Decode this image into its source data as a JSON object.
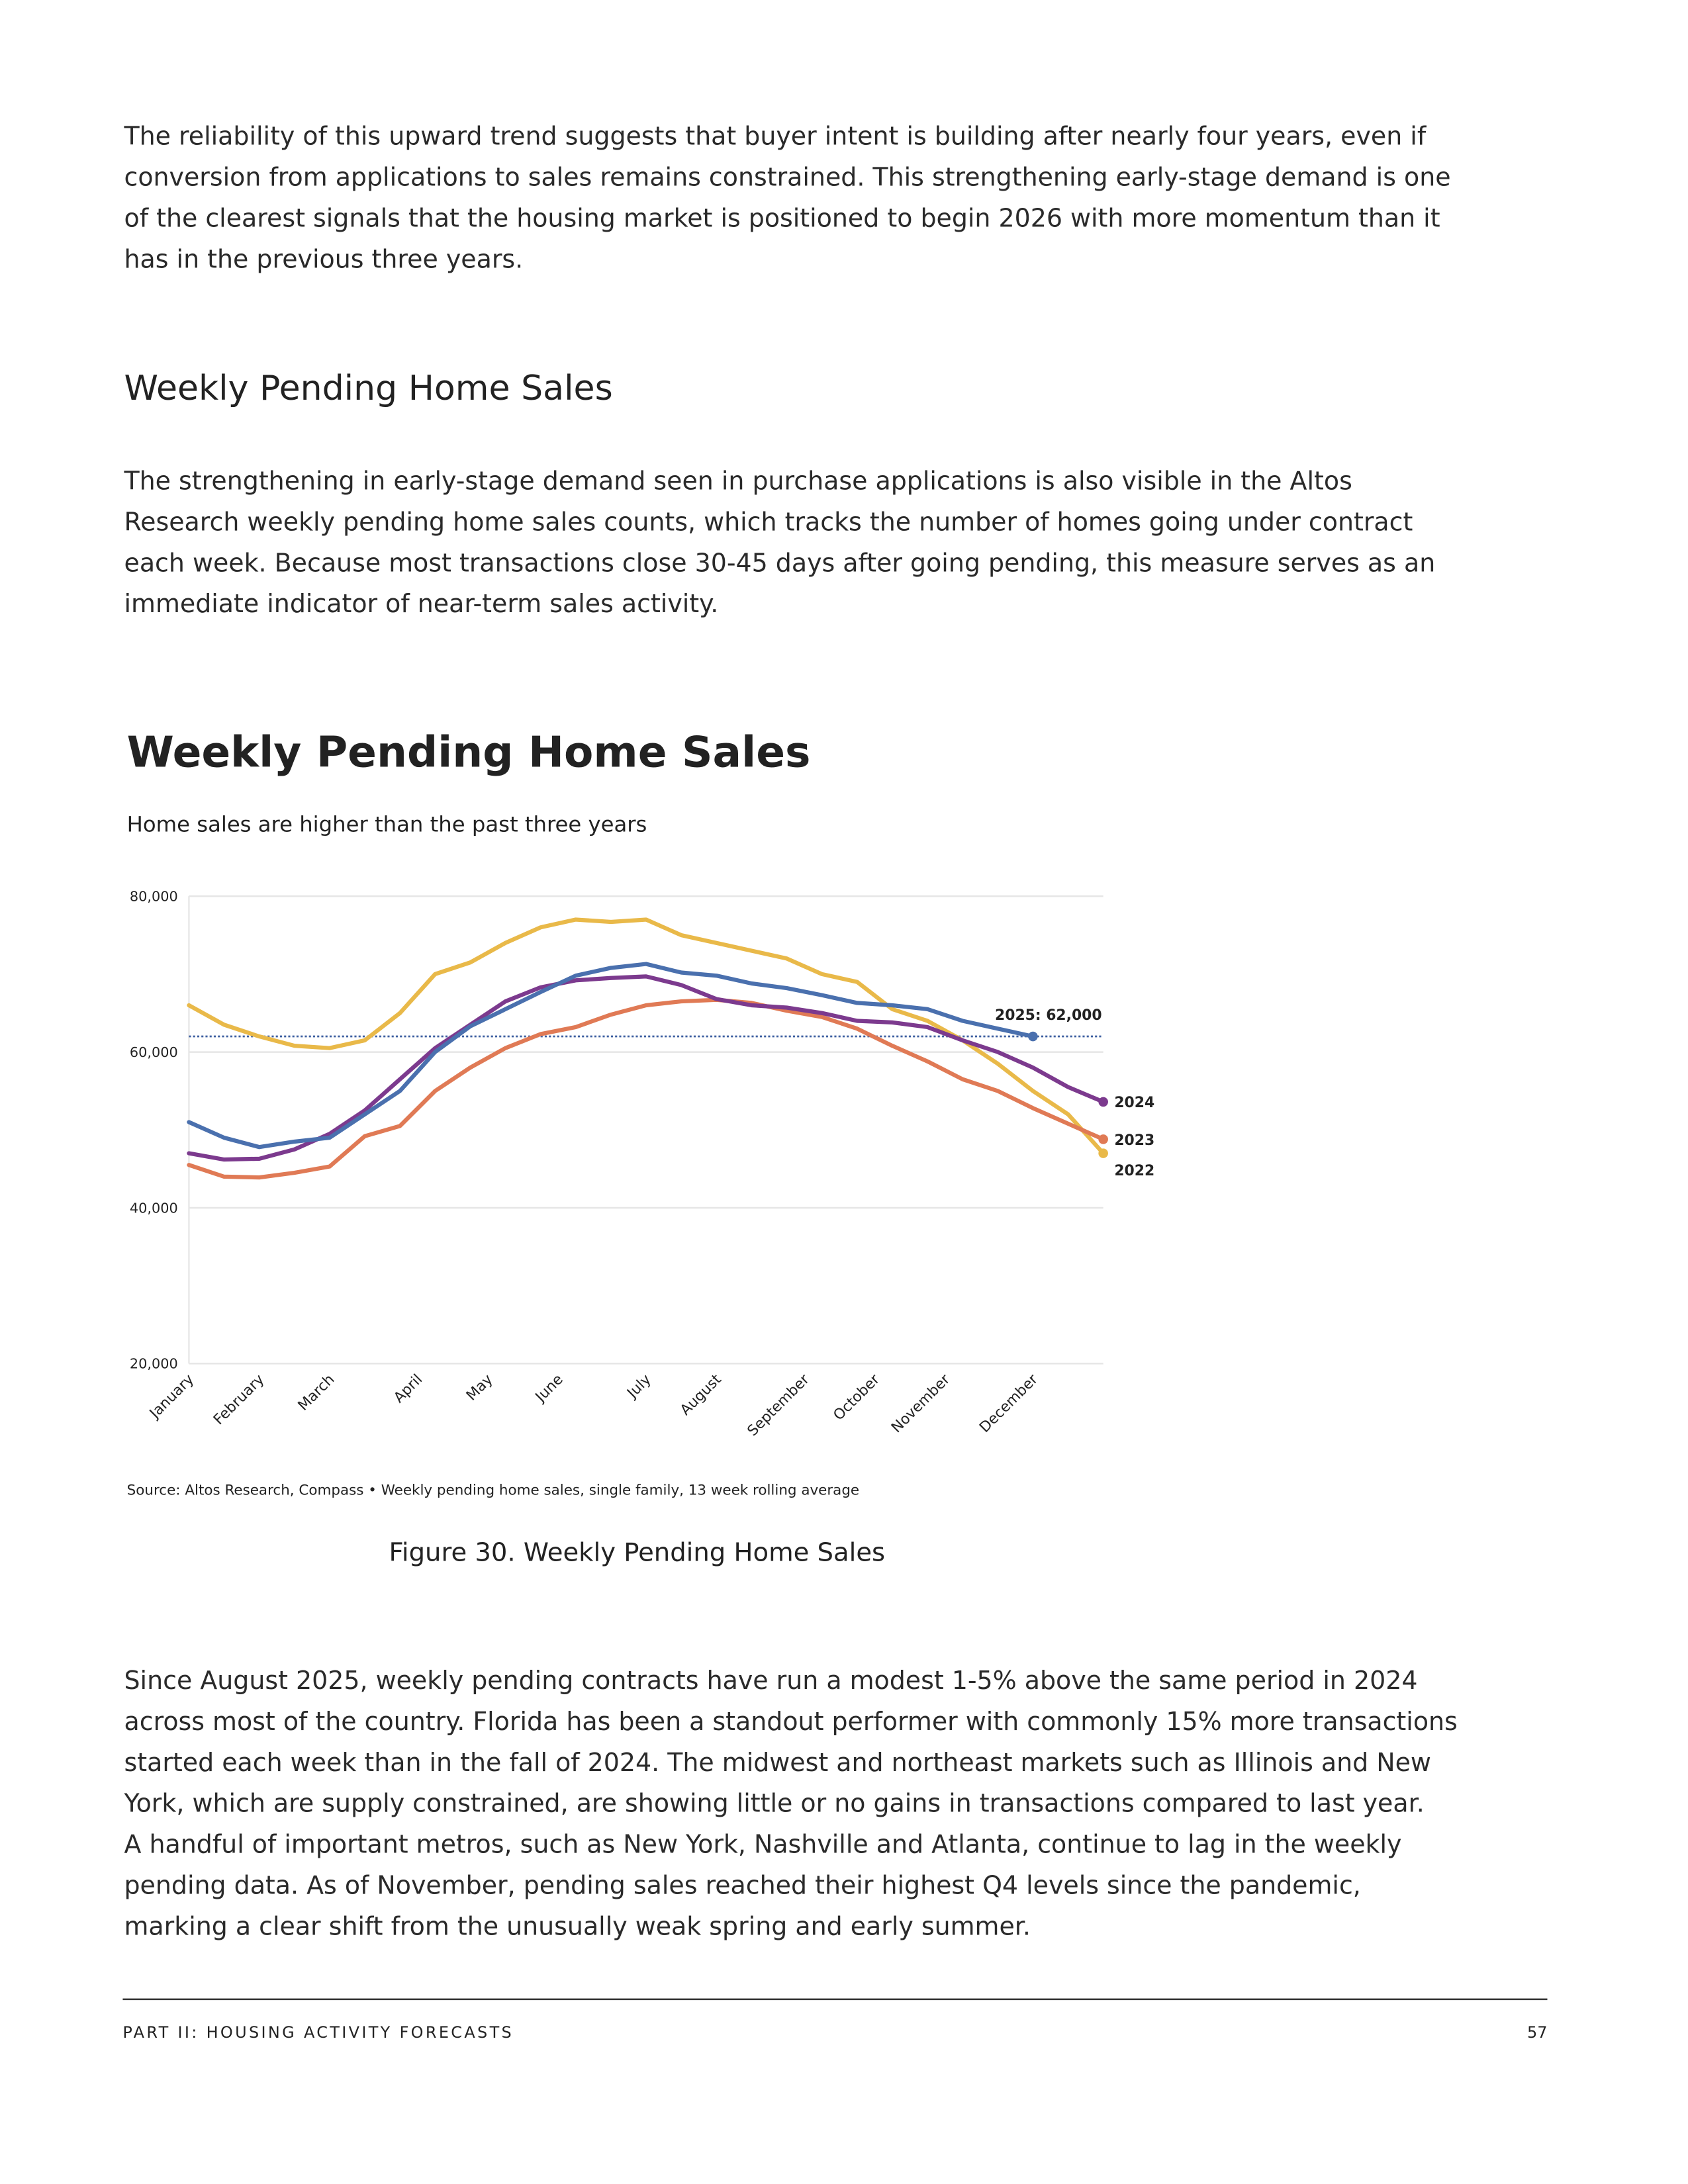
{
  "paragraphs": [
    {
      "lines": [
        "The reliability of this upward trend suggests that buyer intent is building after nearly four years, even if",
        "conversion from applications to sales remains constrained. This strengthening early-stage demand is one",
        "of the clearest signals that the housing market is positioned to begin 2026 with more momentum than it",
        "has in the previous three years."
      ]
    },
    {
      "lines": [
        "The strengthening in early-stage demand seen in purchase applications is also visible in the Altos",
        "Research weekly pending home sales counts, which tracks the number of homes going under contract",
        "each week. Because most transactions close 30-45 days after going pending, this measure serves as an",
        "immediate indicator of near-term sales activity."
      ]
    },
    {
      "lines": [
        "Since August 2025, weekly pending contracts have run a modest 1-5% above the same period in 2024",
        "across most of the country. Florida has been a standout performer with commonly 15% more transactions",
        "started each week than in the fall of 2024. The midwest and northeast markets such as Illinois and New",
        "York, which are supply constrained, are showing little or no gains in transactions compared to last year.",
        "A handful of important metros, such as New York, Nashville and Atlanta, continue to lag in the weekly",
        "pending data. As of November, pending sales reached their highest Q4 levels since the pandemic,",
        "marking a clear shift from the unusually weak spring and early summer."
      ]
    }
  ],
  "heading": "Weekly Pending Home Sales",
  "figure_caption": "Figure 30. Weekly Pending Home Sales",
  "footer": {
    "section": "PART II: HOUSING ACTIVITY FORECASTS",
    "page": "57"
  },
  "chart_data": {
    "type": "line",
    "title": "Weekly Pending Home Sales",
    "subtitle": "Home sales are higher than the past three years",
    "source": "Source: Altos Research, Compass • Weekly pending home sales, single family, 13 week rolling average",
    "x": [
      1,
      3,
      5,
      7,
      9,
      11,
      13,
      15,
      17,
      19,
      21,
      23,
      25,
      27,
      29,
      31,
      33,
      35,
      37,
      39,
      41,
      43,
      45,
      47,
      49,
      51,
      53
    ],
    "xlim": [
      1,
      53
    ],
    "xticks": [
      {
        "value": 1,
        "label": "January"
      },
      {
        "value": 5,
        "label": "February"
      },
      {
        "value": 9,
        "label": "March"
      },
      {
        "value": 14,
        "label": "April"
      },
      {
        "value": 18,
        "label": "May"
      },
      {
        "value": 22,
        "label": "June"
      },
      {
        "value": 27,
        "label": "July"
      },
      {
        "value": 31,
        "label": "August"
      },
      {
        "value": 36,
        "label": "September"
      },
      {
        "value": 40,
        "label": "October"
      },
      {
        "value": 44,
        "label": "November"
      },
      {
        "value": 49,
        "label": "December"
      }
    ],
    "ylim": [
      20000,
      80000
    ],
    "yticks": [
      {
        "value": 20000,
        "label": "20,000"
      },
      {
        "value": 40000,
        "label": "40,000"
      },
      {
        "value": 60000,
        "label": "60,000"
      },
      {
        "value": 80000,
        "label": "80,000"
      }
    ],
    "grid": true,
    "reference_line": 62000,
    "series": [
      {
        "name": "2022",
        "color": "#e9b949",
        "values": [
          66000,
          63500,
          62000,
          60800,
          60500,
          61500,
          65000,
          70000,
          71500,
          74000,
          76000,
          77000,
          76700,
          77000,
          75000,
          74000,
          73000,
          72000,
          70000,
          69000,
          65500,
          64000,
          61500,
          58500,
          55000,
          52000,
          47000
        ]
      },
      {
        "name": "2023",
        "color": "#e07a55",
        "values": [
          45500,
          44000,
          43900,
          44500,
          45300,
          49200,
          50500,
          55000,
          58000,
          60500,
          62300,
          63200,
          64800,
          66000,
          66500,
          66700,
          66300,
          65300,
          64500,
          63000,
          60800,
          58800,
          56500,
          55000,
          52800,
          50800,
          48800
        ]
      },
      {
        "name": "2024",
        "color": "#7c3a8e",
        "values": [
          47000,
          46200,
          46300,
          47500,
          49500,
          52500,
          56500,
          60500,
          63500,
          66500,
          68300,
          69200,
          69500,
          69700,
          68600,
          66800,
          66000,
          65700,
          65000,
          64000,
          63800,
          63200,
          61500,
          60000,
          58000,
          55500,
          53600
        ]
      },
      {
        "name": "2025: 62,000",
        "color": "#4a70ae",
        "values": [
          51000,
          49000,
          47800,
          48500,
          49000,
          52000,
          55000,
          60000,
          63300,
          65500,
          67700,
          69800,
          70800,
          71300,
          70200,
          69800,
          68800,
          68200,
          67300,
          66300,
          66000,
          65500,
          64000,
          63000,
          62000,
          null,
          null
        ]
      }
    ]
  }
}
